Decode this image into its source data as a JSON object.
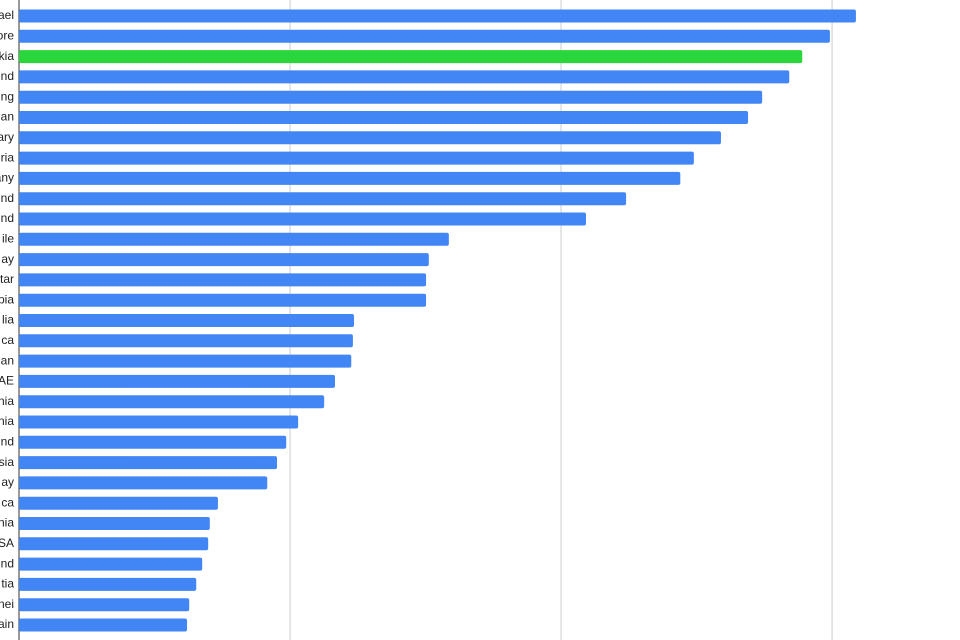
{
  "chart_data": {
    "type": "hbar",
    "categories": [
      "ael",
      "ore",
      "kia",
      "nd",
      "ng",
      "an",
      "ary",
      "ria",
      "any",
      "nd",
      "nd",
      "ile",
      "ay",
      "tar",
      "pia",
      "lia",
      "ca",
      "an",
      "AE",
      "nia",
      "nia",
      "nd",
      "sia",
      "ay",
      "ca",
      "nia",
      "SA",
      "nd",
      "tia",
      "nei",
      "ain"
    ],
    "values": [
      154.4,
      149.6,
      144.5,
      142.1,
      137.1,
      134.5,
      129.5,
      124.5,
      122.0,
      112.0,
      104.6,
      79.3,
      75.6,
      75.1,
      75.1,
      61.8,
      61.6,
      61.3,
      58.3,
      56.3,
      51.5,
      49.3,
      47.6,
      45.8,
      36.7,
      35.2,
      34.9,
      33.8,
      32.7,
      31.4,
      31.0
    ],
    "colors": [
      "#4285f4",
      "#4285f4",
      "#2bd53c",
      "#4285f4",
      "#4285f4",
      "#4285f4",
      "#4285f4",
      "#4285f4",
      "#4285f4",
      "#4285f4",
      "#4285f4",
      "#4285f4",
      "#4285f4",
      "#4285f4",
      "#4285f4",
      "#4285f4",
      "#4285f4",
      "#4285f4",
      "#4285f4",
      "#4285f4",
      "#4285f4",
      "#4285f4",
      "#4285f4",
      "#4285f4",
      "#4285f4",
      "#4285f4",
      "#4285f4",
      "#4285f4",
      "#4285f4",
      "#4285f4",
      "#4285f4"
    ],
    "xlim": [
      0,
      173.6
    ],
    "xticks": [
      0,
      50,
      100,
      150
    ],
    "grid": true
  }
}
